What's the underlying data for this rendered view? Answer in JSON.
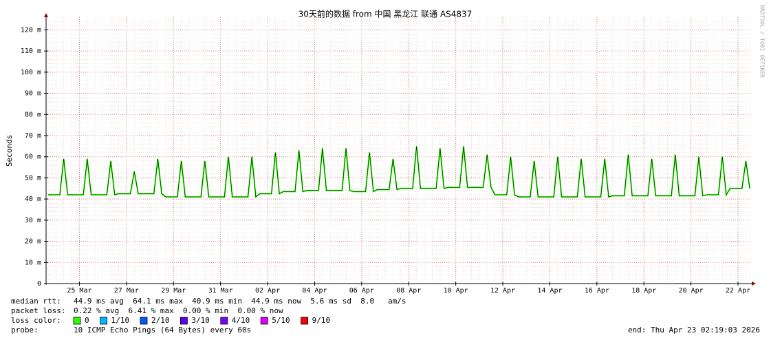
{
  "chart_data": {
    "type": "line",
    "title": "30天前的数据 from 中国 黑龙江 联通 AS4837",
    "y_label": "Seconds",
    "watermark": "RRDTOOL / TOBI OETIKER",
    "color": "#26ff00",
    "grid": true,
    "ylim": [
      0,
      0.126
    ],
    "yticks": [
      0,
      {
        "value": 0.01,
        "label": "10 m"
      },
      {
        "value": 0.02,
        "label": "20 m"
      },
      {
        "value": 0.03,
        "label": "30 m"
      },
      {
        "value": 0.04,
        "label": "40 m"
      },
      {
        "value": 0.05,
        "label": "50 m"
      },
      {
        "value": 0.06,
        "label": "60 m"
      },
      {
        "value": 0.07,
        "label": "70 m"
      },
      {
        "value": 0.08,
        "label": "80 m"
      },
      {
        "value": 0.09,
        "label": "90 m"
      },
      {
        "value": 0.1,
        "label": "100 m"
      },
      {
        "value": 0.11,
        "label": "110 m"
      },
      {
        "value": 0.12,
        "label": "120 m"
      }
    ],
    "categories": [
      null,
      null,
      null,
      null,
      null,
      null,
      null,
      null,
      "25 Mar",
      null,
      null,
      null,
      null,
      null,
      null,
      null,
      null,
      null,
      null,
      null,
      "27 Mar",
      null,
      null,
      null,
      null,
      null,
      null,
      null,
      null,
      null,
      null,
      null,
      "29 Mar",
      null,
      null,
      null,
      null,
      null,
      null,
      null,
      null,
      null,
      null,
      null,
      "31 Mar",
      null,
      null,
      null,
      null,
      null,
      null,
      null,
      null,
      null,
      null,
      null,
      "02 Apr",
      null,
      null,
      null,
      null,
      null,
      null,
      null,
      null,
      null,
      null,
      null,
      "04 Apr",
      null,
      null,
      null,
      null,
      null,
      null,
      null,
      null,
      null,
      null,
      null,
      "06 Apr",
      null,
      null,
      null,
      null,
      null,
      null,
      null,
      null,
      null,
      null,
      null,
      "08 Apr",
      null,
      null,
      null,
      null,
      null,
      null,
      null,
      null,
      null,
      null,
      null,
      "10 Apr",
      null,
      null,
      null,
      null,
      null,
      null,
      null,
      null,
      null,
      null,
      null,
      "12 Apr",
      null,
      null,
      null,
      null,
      null,
      null,
      null,
      null,
      null,
      null,
      null,
      "14 Apr",
      null,
      null,
      null,
      null,
      null,
      null,
      null,
      null,
      null,
      null,
      null,
      "16 Apr",
      null,
      null,
      null,
      null,
      null,
      null,
      null,
      null,
      null,
      null,
      null,
      "18 Apr",
      null,
      null,
      null,
      null,
      null,
      null,
      null,
      null,
      null,
      null,
      null,
      "20 Apr",
      null,
      null,
      null,
      null,
      null,
      null,
      null,
      null,
      null,
      null,
      null,
      "22 Apr",
      null,
      null,
      null
    ],
    "values": [
      0.042,
      0.042,
      0.042,
      0.042,
      0.059,
      0.042,
      0.042,
      0.042,
      0.042,
      0.042,
      0.059,
      0.042,
      0.042,
      0.042,
      0.042,
      0.042,
      0.058,
      0.042,
      0.0425,
      0.0425,
      0.0425,
      0.0425,
      0.053,
      0.0425,
      0.0425,
      0.0425,
      0.0425,
      0.0425,
      0.059,
      0.0425,
      0.041,
      0.041,
      0.041,
      0.041,
      0.058,
      0.041,
      0.041,
      0.041,
      0.041,
      0.041,
      0.058,
      0.041,
      0.041,
      0.041,
      0.041,
      0.041,
      0.06,
      0.041,
      0.041,
      0.041,
      0.041,
      0.041,
      0.06,
      0.041,
      0.0425,
      0.0425,
      0.0425,
      0.0425,
      0.062,
      0.0425,
      0.0435,
      0.0435,
      0.0435,
      0.0435,
      0.063,
      0.0435,
      0.044,
      0.044,
      0.044,
      0.044,
      0.064,
      0.044,
      0.044,
      0.044,
      0.044,
      0.044,
      0.064,
      0.044,
      0.0435,
      0.0435,
      0.0435,
      0.0435,
      0.062,
      0.0435,
      0.0445,
      0.0445,
      0.0445,
      0.0445,
      0.059,
      0.0445,
      0.045,
      0.045,
      0.045,
      0.045,
      0.065,
      0.045,
      0.045,
      0.045,
      0.045,
      0.045,
      0.064,
      0.045,
      0.0455,
      0.0455,
      0.0455,
      0.0455,
      0.065,
      0.0455,
      0.0455,
      0.0455,
      0.0455,
      0.0455,
      0.061,
      0.0455,
      0.042,
      0.042,
      0.042,
      0.042,
      0.06,
      0.042,
      0.041,
      0.041,
      0.041,
      0.041,
      0.058,
      0.041,
      0.041,
      0.041,
      0.041,
      0.041,
      0.06,
      0.041,
      0.041,
      0.041,
      0.041,
      0.041,
      0.059,
      0.041,
      0.041,
      0.041,
      0.041,
      0.041,
      0.059,
      0.041,
      0.0415,
      0.0415,
      0.0415,
      0.0415,
      0.061,
      0.0415,
      0.0415,
      0.0415,
      0.0415,
      0.0415,
      0.059,
      0.0415,
      0.0415,
      0.0415,
      0.0415,
      0.0415,
      0.061,
      0.0415,
      0.0415,
      0.0415,
      0.0415,
      0.0415,
      0.06,
      0.0415,
      0.042,
      0.042,
      0.042,
      0.042,
      0.06,
      0.042,
      0.045,
      0.045,
      0.045,
      0.045,
      0.058,
      0.045
    ]
  },
  "footer": {
    "lines": [
      {
        "label": "median rtt:",
        "text": "44.9 ms avg  64.1 ms max  40.9 ms min  44.9 ms now  5.6 ms sd  8.0   am/s"
      },
      {
        "label": "packet loss:",
        "text": "0.22 % avg  6.41 % max  0.00 % min  0.00 % now"
      }
    ],
    "loss_label": "loss color:",
    "loss_colors": [
      {
        "label": "0",
        "color": "#26ff00"
      },
      {
        "label": "1/10",
        "color": "#00b8ff"
      },
      {
        "label": "2/10",
        "color": "#0059ff"
      },
      {
        "label": "3/10",
        "color": "#5e00ff"
      },
      {
        "label": "4/10",
        "color": "#7e00ff"
      },
      {
        "label": "5/10",
        "color": "#dd00ff"
      },
      {
        "label": "9/10",
        "color": "#ff0000"
      }
    ],
    "probe_label": "probe:",
    "probe": "10 ICMP Echo Pings (64 Bytes) every 60s",
    "end": "end: Thu Apr 23 02:19:03 2026"
  }
}
